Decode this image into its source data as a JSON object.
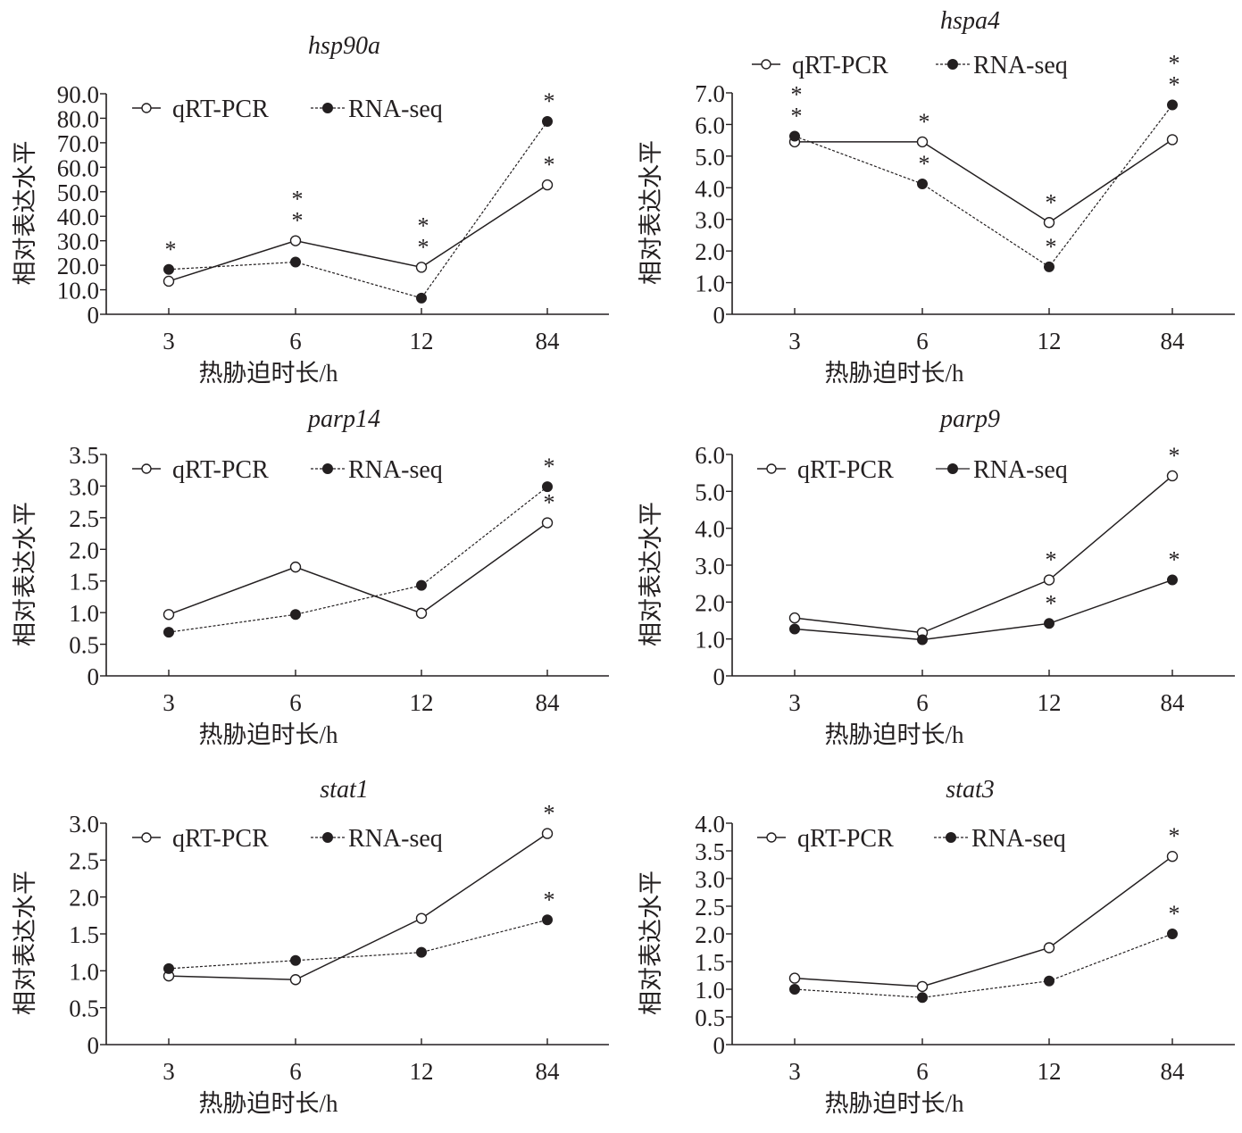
{
  "figure": {
    "legend_labels": [
      "qRT-PCR",
      "RNA-seq"
    ],
    "colors": {
      "ink": "#231f20",
      "marker_open_fill": "#ffffff"
    }
  },
  "chart_data": [
    {
      "type": "line",
      "title": "hsp90a",
      "xlabel": "热胁迫时长/h",
      "ylabel": "相对表达水平",
      "categories": [
        "3",
        "6",
        "12",
        "84"
      ],
      "yticks": [
        "0",
        "10.0",
        "20.0",
        "30.0",
        "40.0",
        "50.0",
        "60.0",
        "70.0",
        "80.0",
        "90.0"
      ],
      "ylim": [
        0,
        90
      ],
      "grid": false,
      "legend_position": "top",
      "series": [
        {
          "name": "qRT-PCR",
          "marker": "open-circle",
          "line": "solid",
          "values": [
            13.5,
            30.0,
            19.2,
            52.8
          ],
          "significance": [
            "",
            "*",
            "*",
            "*"
          ]
        },
        {
          "name": "RNA-seq",
          "marker": "filled-circle",
          "line": "dashed",
          "values": [
            18.3,
            21.3,
            6.6,
            78.7
          ],
          "significance": [
            "*",
            "*",
            "*",
            "*"
          ]
        }
      ]
    },
    {
      "type": "line",
      "title": "hspa4",
      "xlabel": "热胁迫时长/h",
      "ylabel": "相对表达水平",
      "categories": [
        "3",
        "6",
        "12",
        "84"
      ],
      "yticks": [
        "0",
        "1.0",
        "2.0",
        "3.0",
        "4.0",
        "5.0",
        "6.0",
        "7.0"
      ],
      "ylim": [
        0,
        7
      ],
      "grid": false,
      "legend_position": "above-plot",
      "series": [
        {
          "name": "qRT-PCR",
          "marker": "open-circle",
          "line": "solid",
          "values": [
            5.45,
            5.45,
            2.9,
            5.52
          ],
          "significance": [
            "*",
            "*",
            "*",
            "*"
          ]
        },
        {
          "name": "RNA-seq",
          "marker": "filled-circle",
          "line": "dashed",
          "values": [
            5.63,
            4.12,
            1.5,
            6.62
          ],
          "significance": [
            "*",
            "*",
            "*",
            "*"
          ]
        }
      ]
    },
    {
      "type": "line",
      "title": "parp14",
      "xlabel": "热胁迫时长/h",
      "ylabel": "相对表达水平",
      "categories": [
        "3",
        "6",
        "12",
        "84"
      ],
      "yticks": [
        "0",
        "0.5",
        "1.0",
        "1.5",
        "2.0",
        "2.5",
        "3.0",
        "3.5"
      ],
      "ylim": [
        0,
        3.5
      ],
      "grid": false,
      "legend_position": "top",
      "series": [
        {
          "name": "qRT-PCR",
          "marker": "open-circle",
          "line": "solid",
          "values": [
            0.97,
            1.72,
            0.99,
            2.42
          ],
          "significance": [
            "",
            "",
            "",
            "*"
          ]
        },
        {
          "name": "RNA-seq",
          "marker": "filled-circle",
          "line": "dashed",
          "values": [
            0.69,
            0.97,
            1.43,
            2.99
          ],
          "significance": [
            "",
            "",
            "",
            "*"
          ]
        }
      ]
    },
    {
      "type": "line",
      "title": "parp9",
      "xlabel": "热胁迫时长/h",
      "ylabel": "相对表达水平",
      "categories": [
        "3",
        "6",
        "12",
        "84"
      ],
      "yticks": [
        "0",
        "1.0",
        "2.0",
        "3.0",
        "4.0",
        "5.0",
        "6.0"
      ],
      "ylim": [
        0,
        6
      ],
      "grid": false,
      "legend_position": "top",
      "series": [
        {
          "name": "qRT-PCR",
          "marker": "open-circle",
          "line": "solid",
          "values": [
            1.57,
            1.17,
            2.6,
            5.42
          ],
          "significance": [
            "",
            "",
            "*",
            "*"
          ]
        },
        {
          "name": "RNA-seq",
          "marker": "filled-circle",
          "line": "solid",
          "values": [
            1.27,
            0.98,
            1.42,
            2.6
          ],
          "significance": [
            "",
            "",
            "*",
            "*"
          ]
        }
      ]
    },
    {
      "type": "line",
      "title": "stat1",
      "xlabel": "热胁迫时长/h",
      "ylabel": "相对表达水平",
      "categories": [
        "3",
        "6",
        "12",
        "84"
      ],
      "yticks": [
        "0",
        "0.5",
        "1.0",
        "1.5",
        "2.0",
        "2.5",
        "3.0"
      ],
      "ylim": [
        0,
        3
      ],
      "grid": false,
      "legend_position": "top",
      "series": [
        {
          "name": "qRT-PCR",
          "marker": "open-circle",
          "line": "solid",
          "values": [
            0.93,
            0.88,
            1.71,
            2.86
          ],
          "significance": [
            "",
            "",
            "",
            "*"
          ]
        },
        {
          "name": "RNA-seq",
          "marker": "filled-circle",
          "line": "dashed",
          "values": [
            1.03,
            1.14,
            1.25,
            1.69
          ],
          "significance": [
            "",
            "",
            "",
            "*"
          ]
        }
      ]
    },
    {
      "type": "line",
      "title": "stat3",
      "xlabel": "热胁迫时长/h",
      "ylabel": "相对表达水平",
      "categories": [
        "3",
        "6",
        "12",
        "84"
      ],
      "yticks": [
        "0",
        "0.5",
        "1.0",
        "1.5",
        "2.0",
        "2.5",
        "3.0",
        "3.5",
        "4.0"
      ],
      "ylim": [
        0,
        4
      ],
      "grid": false,
      "legend_position": "top",
      "series": [
        {
          "name": "qRT-PCR",
          "marker": "open-circle",
          "line": "solid",
          "values": [
            1.2,
            1.05,
            1.75,
            3.4
          ],
          "significance": [
            "",
            "",
            "",
            "*"
          ]
        },
        {
          "name": "RNA-seq",
          "marker": "filled-circle",
          "line": "dashed",
          "values": [
            1.0,
            0.85,
            1.15,
            2.0
          ],
          "significance": [
            "",
            "",
            "",
            "*"
          ]
        }
      ]
    }
  ]
}
